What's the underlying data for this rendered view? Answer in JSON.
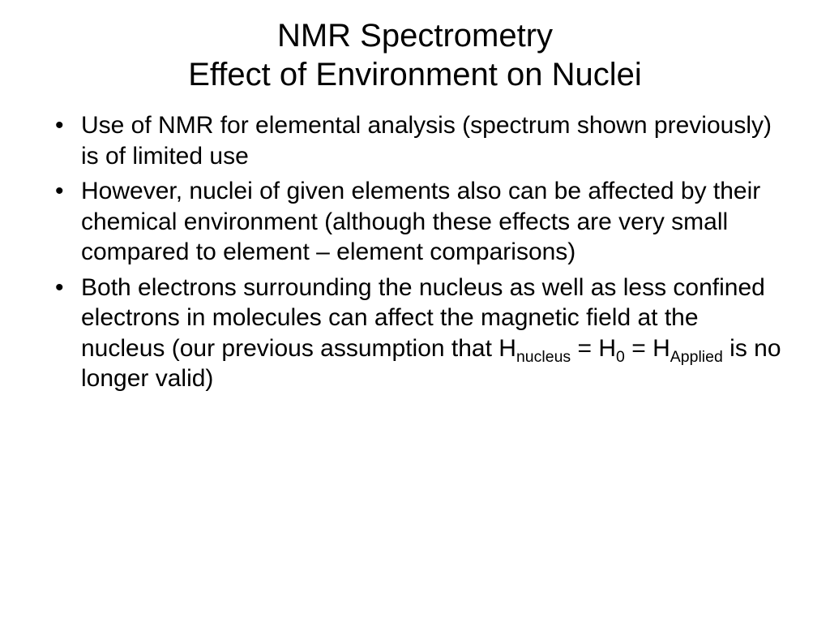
{
  "slide": {
    "title_line1": "NMR Spectrometry",
    "title_line2": "Effect of Environment on Nuclei",
    "bullets": [
      {
        "text": "Use of NMR for elemental analysis (spectrum shown previously) is of limited use"
      },
      {
        "text": "However, nuclei of given elements also can be affected by their chemical environment (although these effects are very small compared to element – element comparisons)"
      },
      {
        "prefix": "Both electrons surrounding the nucleus as well as less confined electrons in molecules can affect the magnetic field at the nucleus (our previous assumption that H",
        "sub1": "nucleus",
        "mid1": " = H",
        "sub2": "0",
        "mid2": " = H",
        "sub3": "Applied",
        "suffix": " is no longer valid)"
      }
    ]
  },
  "style": {
    "background_color": "#ffffff",
    "text_color": "#000000",
    "title_fontsize": 40,
    "body_fontsize": 30,
    "font_family": "Verdana"
  }
}
